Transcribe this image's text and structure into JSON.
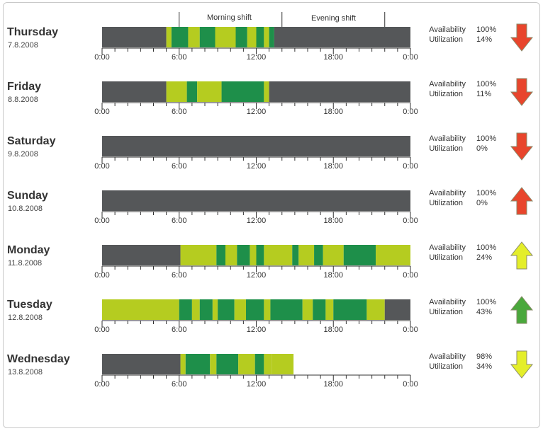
{
  "colors": {
    "idle": "#555759",
    "productive": "#1e8f4a",
    "partial": "#b5cc20",
    "trend_down": "#e8452c",
    "trend_up_red": "#e8452c",
    "trend_up_yellow": "#e4ee2a",
    "trend_up_green": "#4aa83c",
    "trend_down_yellow": "#e4ee2a"
  },
  "shifts": [
    {
      "name": "Morning shift",
      "start": 6,
      "end": 14
    },
    {
      "name": "Evening shift",
      "start": 14,
      "end": 22
    }
  ],
  "labels": {
    "availability": "Availability",
    "utilization": "Utilization"
  },
  "chart_data": {
    "type": "timeline",
    "x_unit": "hour of day",
    "xlim": [
      0,
      24
    ],
    "tick_labels": [
      "0:00",
      "6:00",
      "12:00",
      "18:00",
      "0:00"
    ],
    "days": [
      {
        "name": "Thursday",
        "date": "7.8.2008",
        "availability": "100%",
        "utilization": "14%",
        "trend": "down",
        "trend_color": "red",
        "segments": [
          {
            "start": 0,
            "end": 5.0,
            "state": "idle"
          },
          {
            "start": 5.0,
            "end": 5.4,
            "state": "partial"
          },
          {
            "start": 5.4,
            "end": 6.7,
            "state": "productive"
          },
          {
            "start": 6.7,
            "end": 7.6,
            "state": "partial"
          },
          {
            "start": 7.6,
            "end": 8.8,
            "state": "productive"
          },
          {
            "start": 8.8,
            "end": 10.4,
            "state": "partial"
          },
          {
            "start": 10.4,
            "end": 11.3,
            "state": "productive"
          },
          {
            "start": 11.3,
            "end": 12.0,
            "state": "partial"
          },
          {
            "start": 12.0,
            "end": 12.6,
            "state": "productive"
          },
          {
            "start": 12.6,
            "end": 13.0,
            "state": "partial"
          },
          {
            "start": 13.0,
            "end": 13.4,
            "state": "productive"
          },
          {
            "start": 13.4,
            "end": 24,
            "state": "idle"
          }
        ]
      },
      {
        "name": "Friday",
        "date": "8.8.2008",
        "availability": "100%",
        "utilization": "11%",
        "trend": "down",
        "trend_color": "red",
        "segments": [
          {
            "start": 0,
            "end": 5.0,
            "state": "idle"
          },
          {
            "start": 5.0,
            "end": 6.6,
            "state": "partial"
          },
          {
            "start": 6.6,
            "end": 7.4,
            "state": "productive"
          },
          {
            "start": 7.4,
            "end": 9.3,
            "state": "partial"
          },
          {
            "start": 9.3,
            "end": 12.6,
            "state": "productive"
          },
          {
            "start": 12.6,
            "end": 13.0,
            "state": "partial"
          },
          {
            "start": 13.0,
            "end": 24,
            "state": "idle"
          }
        ]
      },
      {
        "name": "Saturday",
        "date": "9.8.2008",
        "availability": "100%",
        "utilization": "0%",
        "trend": "down",
        "trend_color": "red",
        "segments": [
          {
            "start": 0,
            "end": 24,
            "state": "idle"
          }
        ]
      },
      {
        "name": "Sunday",
        "date": "10.8.2008",
        "availability": "100%",
        "utilization": "0%",
        "trend": "up",
        "trend_color": "red",
        "segments": [
          {
            "start": 0,
            "end": 24,
            "state": "idle"
          }
        ]
      },
      {
        "name": "Monday",
        "date": "11.8.2008",
        "availability": "100%",
        "utilization": "24%",
        "trend": "up",
        "trend_color": "yellow",
        "segments": [
          {
            "start": 0,
            "end": 6.1,
            "state": "idle"
          },
          {
            "start": 6.1,
            "end": 8.9,
            "state": "partial"
          },
          {
            "start": 8.9,
            "end": 9.6,
            "state": "productive"
          },
          {
            "start": 9.6,
            "end": 10.5,
            "state": "partial"
          },
          {
            "start": 10.5,
            "end": 11.5,
            "state": "productive"
          },
          {
            "start": 11.5,
            "end": 12.0,
            "state": "partial"
          },
          {
            "start": 12.0,
            "end": 12.6,
            "state": "productive"
          },
          {
            "start": 12.6,
            "end": 14.8,
            "state": "partial"
          },
          {
            "start": 14.8,
            "end": 15.3,
            "state": "productive"
          },
          {
            "start": 15.3,
            "end": 16.5,
            "state": "partial"
          },
          {
            "start": 16.5,
            "end": 17.2,
            "state": "productive"
          },
          {
            "start": 17.2,
            "end": 18.8,
            "state": "partial"
          },
          {
            "start": 18.8,
            "end": 21.3,
            "state": "productive"
          },
          {
            "start": 21.3,
            "end": 24,
            "state": "partial"
          }
        ]
      },
      {
        "name": "Tuesday",
        "date": "12.8.2008",
        "availability": "100%",
        "utilization": "43%",
        "trend": "up",
        "trend_color": "green",
        "segments": [
          {
            "start": 0,
            "end": 6.0,
            "state": "partial"
          },
          {
            "start": 6.0,
            "end": 7.0,
            "state": "productive"
          },
          {
            "start": 7.0,
            "end": 7.6,
            "state": "partial"
          },
          {
            "start": 7.6,
            "end": 8.6,
            "state": "productive"
          },
          {
            "start": 8.6,
            "end": 9.0,
            "state": "partial"
          },
          {
            "start": 9.0,
            "end": 10.3,
            "state": "productive"
          },
          {
            "start": 10.3,
            "end": 11.2,
            "state": "partial"
          },
          {
            "start": 11.2,
            "end": 12.6,
            "state": "productive"
          },
          {
            "start": 12.6,
            "end": 13.1,
            "state": "partial"
          },
          {
            "start": 13.1,
            "end": 15.6,
            "state": "productive"
          },
          {
            "start": 15.6,
            "end": 16.4,
            "state": "partial"
          },
          {
            "start": 16.4,
            "end": 17.4,
            "state": "productive"
          },
          {
            "start": 17.4,
            "end": 18.0,
            "state": "partial"
          },
          {
            "start": 18.0,
            "end": 20.6,
            "state": "productive"
          },
          {
            "start": 20.6,
            "end": 22.0,
            "state": "partial"
          },
          {
            "start": 22.0,
            "end": 24,
            "state": "idle"
          }
        ]
      },
      {
        "name": "Wednesday",
        "date": "13.8.2008",
        "availability": "98%",
        "utilization": "34%",
        "trend": "down",
        "trend_color": "yellow",
        "segments": [
          {
            "start": 0,
            "end": 6.1,
            "state": "idle"
          },
          {
            "start": 6.1,
            "end": 6.5,
            "state": "partial"
          },
          {
            "start": 6.5,
            "end": 8.4,
            "state": "productive"
          },
          {
            "start": 8.4,
            "end": 8.9,
            "state": "partial"
          },
          {
            "start": 8.9,
            "end": 10.6,
            "state": "productive"
          },
          {
            "start": 10.6,
            "end": 11.9,
            "state": "partial"
          },
          {
            "start": 11.9,
            "end": 12.6,
            "state": "productive"
          },
          {
            "start": 12.6,
            "end": 13.2,
            "state": "partial"
          },
          {
            "start": 13.2,
            "end": 14.9,
            "state": "partial"
          }
        ]
      }
    ]
  }
}
